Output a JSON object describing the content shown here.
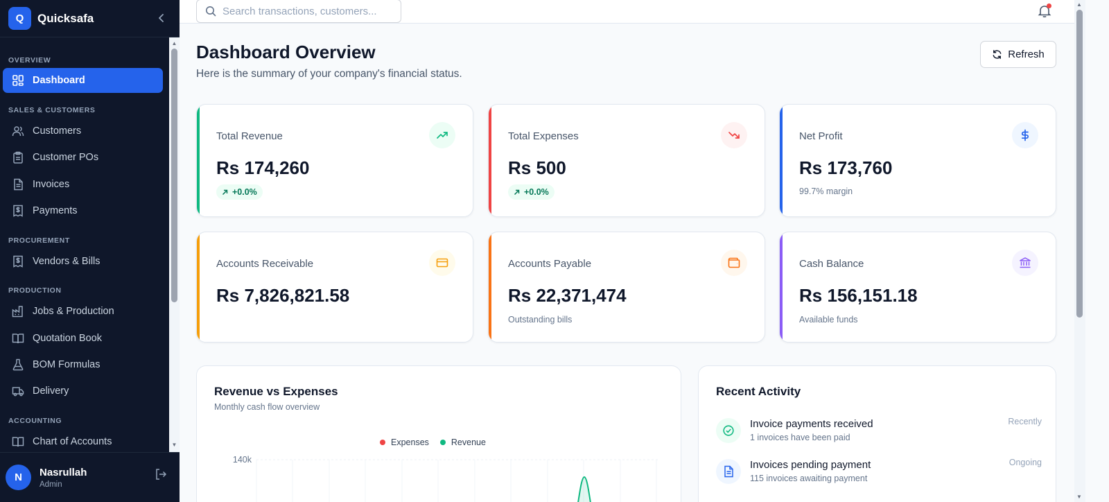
{
  "brand": {
    "logo_letter": "Q",
    "name": "Quicksafa"
  },
  "sidebar": {
    "sections": [
      {
        "label": "OVERVIEW"
      },
      {
        "label": "SALES & CUSTOMERS"
      },
      {
        "label": "PROCUREMENT"
      },
      {
        "label": "PRODUCTION"
      },
      {
        "label": "ACCOUNTING"
      }
    ],
    "items": [
      {
        "label": "Dashboard",
        "icon": "grid-icon",
        "active": true
      },
      {
        "label": "Customers",
        "icon": "users-icon"
      },
      {
        "label": "Customer POs",
        "icon": "clipboard-icon"
      },
      {
        "label": "Invoices",
        "icon": "file-text-icon"
      },
      {
        "label": "Payments",
        "icon": "receipt-dollar-icon"
      },
      {
        "label": "Vendors & Bills",
        "icon": "receipt-dollar-icon"
      },
      {
        "label": "Jobs & Production",
        "icon": "factory-icon"
      },
      {
        "label": "Quotation Book",
        "icon": "book-open-icon"
      },
      {
        "label": "BOM Formulas",
        "icon": "flask-icon"
      },
      {
        "label": "Delivery",
        "icon": "truck-icon"
      },
      {
        "label": "Chart of Accounts",
        "icon": "book-open-icon"
      }
    ]
  },
  "user": {
    "initial": "N",
    "name": "Nasrullah",
    "role": "Admin"
  },
  "search": {
    "placeholder": "Search transactions, customers..."
  },
  "header": {
    "title": "Dashboard Overview",
    "subtitle": "Here is the summary of your company's financial status.",
    "refresh_label": "Refresh"
  },
  "cards": [
    {
      "label": "Total Revenue",
      "value": "Rs 174,260",
      "badge": "+0.0%",
      "accent": "#10b981",
      "icon": "trending-up-icon"
    },
    {
      "label": "Total Expenses",
      "value": "Rs 500",
      "badge": "+0.0%",
      "accent": "#ef4444",
      "icon": "trending-down-icon"
    },
    {
      "label": "Net Profit",
      "value": "Rs 173,760",
      "sub": "99.7% margin",
      "accent": "#2563eb",
      "icon": "dollar-icon"
    },
    {
      "label": "Accounts Receivable",
      "value": "Rs 7,826,821.58",
      "accent": "#f59e0b",
      "icon": "credit-card-icon"
    },
    {
      "label": "Accounts Payable",
      "value": "Rs 22,371,474",
      "sub": "Outstanding bills",
      "accent": "#f97316",
      "icon": "wallet-icon"
    },
    {
      "label": "Cash Balance",
      "value": "Rs 156,151.18",
      "sub": "Available funds",
      "accent": "#8b5cf6",
      "icon": "bank-icon"
    }
  ],
  "revenue_panel": {
    "title": "Revenue vs Expenses",
    "subtitle": "Monthly cash flow overview",
    "legend": [
      {
        "name": "Expenses",
        "color": "#ef4444"
      },
      {
        "name": "Revenue",
        "color": "#10b981"
      }
    ]
  },
  "chart_data": {
    "type": "area",
    "title": "Revenue vs Expenses",
    "subtitle": "Monthly cash flow overview",
    "ytick_labels": [
      "140k"
    ],
    "series": [
      {
        "name": "Expenses",
        "color": "#ef4444"
      },
      {
        "name": "Revenue",
        "color": "#10b981"
      }
    ],
    "grid": true,
    "legend": "top-center"
  },
  "activity_panel": {
    "title": "Recent Activity",
    "items": [
      {
        "title": "Invoice payments received",
        "desc": "1 invoices have been paid",
        "time": "Recently",
        "icon": "check-circle-icon"
      },
      {
        "title": "Invoices pending payment",
        "desc": "115 invoices awaiting payment",
        "time": "Ongoing",
        "icon": "file-text-icon"
      }
    ]
  }
}
